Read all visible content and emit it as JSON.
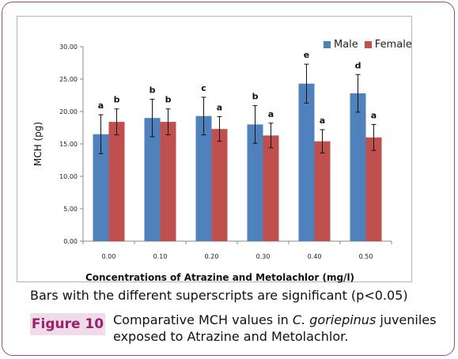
{
  "figure": {
    "label": "Figure 10",
    "note": "Bars with the different superscripts are significant (p<0.05)",
    "caption_pre": "Comparative MCH values in ",
    "caption_species": "C. goriepinus",
    "caption_post": " juveniles exposed to Atrazine and Metolachlor."
  },
  "chart_data": {
    "type": "bar",
    "title": "",
    "xlabel": "Concentrations of Atrazine and Metolachlor (mg/l)",
    "ylabel": "MCH (pg)",
    "ylim": [
      0,
      30
    ],
    "yticks": [
      "0.00",
      "5.00",
      "10.00",
      "15.00",
      "20.00",
      "25.00",
      "30.00"
    ],
    "categories": [
      "0.00",
      "0.10",
      "0.20",
      "0.30",
      "0.40",
      "0.50"
    ],
    "legend_position": "top-right",
    "grid": false,
    "series": [
      {
        "name": "Male",
        "color": "#4f81bd",
        "values": [
          16.5,
          19.0,
          19.3,
          18.0,
          24.3,
          22.8
        ],
        "errors": [
          3.0,
          2.9,
          2.9,
          2.9,
          3.0,
          2.9
        ],
        "letters": [
          "a",
          "b",
          "c",
          "b",
          "e",
          "d"
        ]
      },
      {
        "name": "Female",
        "color": "#c0504d",
        "values": [
          18.4,
          18.4,
          17.3,
          16.3,
          15.4,
          16.0
        ],
        "errors": [
          2.0,
          2.0,
          1.9,
          1.9,
          1.8,
          2.0
        ],
        "letters": [
          "b",
          "b",
          "a",
          "a",
          "a",
          "a"
        ]
      }
    ]
  }
}
